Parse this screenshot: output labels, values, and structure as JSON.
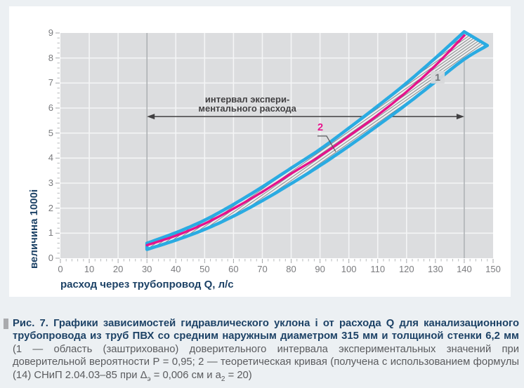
{
  "figure": {
    "caption": {
      "bold": "Рис. 7. Графики зависимостей гидравлического уклона i от расхода Q для канализационного трубопровода из труб ПВХ со средним наружным диаметром 315 мм и толщиной стенки 6,2 мм ",
      "normal_pre": "(1 — область (заштриховано) доверительного интервала экспериментальных значений при доверительной вероятности Р = 0,95; 2 — теоретическая кривая (получена с использованием формулы (14) СНиП 2.04.03–85 при ",
      "delta_base": "Δ",
      "delta_sub": "э",
      "mid": " = 0,006 см и ",
      "a_base": "а",
      "a_sub": "2",
      "tail": " = 20)"
    }
  },
  "chart_data": {
    "type": "area",
    "title": "",
    "xlabel": "расход через трубопровод Q, л/с",
    "ylabel": "величина 1000i",
    "xlim": [
      0,
      150
    ],
    "ylim": [
      0,
      9
    ],
    "xticks": [
      0,
      10,
      20,
      30,
      40,
      50,
      60,
      70,
      80,
      90,
      100,
      110,
      120,
      130,
      140,
      150
    ],
    "yticks": [
      0,
      1,
      2,
      3,
      4,
      5,
      6,
      7,
      8,
      9
    ],
    "x_minor_step": 2,
    "y_minor_step": 0.2,
    "grid": true,
    "reference_lines_x": [
      30,
      140
    ],
    "series": [
      {
        "name": "1 — доверительный интервал, верхняя граница",
        "points": [
          [
            30,
            0.6
          ],
          [
            40,
            1.02
          ],
          [
            50,
            1.52
          ],
          [
            60,
            2.15
          ],
          [
            70,
            2.85
          ],
          [
            80,
            3.6
          ],
          [
            90,
            4.35
          ],
          [
            100,
            5.2
          ],
          [
            110,
            6.08
          ],
          [
            120,
            7.0
          ],
          [
            130,
            8.0
          ],
          [
            140,
            9.05
          ]
        ]
      },
      {
        "name": "1 — доверительный интервал, нижняя граница",
        "points": [
          [
            30,
            0.35
          ],
          [
            40,
            0.72
          ],
          [
            50,
            1.15
          ],
          [
            60,
            1.68
          ],
          [
            70,
            2.3
          ],
          [
            80,
            2.98
          ],
          [
            90,
            3.7
          ],
          [
            100,
            4.48
          ],
          [
            110,
            5.3
          ],
          [
            120,
            6.15
          ],
          [
            130,
            7.05
          ],
          [
            140,
            7.95
          ],
          [
            148,
            8.5
          ]
        ]
      },
      {
        "name": "2 — теоретическая кривая",
        "points": [
          [
            30,
            0.52
          ],
          [
            40,
            0.9
          ],
          [
            50,
            1.38
          ],
          [
            60,
            1.98
          ],
          [
            70,
            2.65
          ],
          [
            80,
            3.38
          ],
          [
            90,
            4.08
          ],
          [
            100,
            4.88
          ],
          [
            110,
            5.72
          ],
          [
            120,
            6.65
          ],
          [
            130,
            7.7
          ],
          [
            140,
            8.9
          ]
        ]
      }
    ],
    "annotations": {
      "interval_label_line1": "интервал экспери-",
      "interval_label_line2": "ментального расхода",
      "interval_label_pos": [
        64.8,
        6.22
      ],
      "interval_arrow": {
        "x_from": 30,
        "x_to": 140,
        "y": 5.66
      },
      "band_label": "1",
      "band_label_pos": [
        130.8,
        7.23
      ],
      "curve_label": "2",
      "curve_label_pos": [
        90.1,
        5.1
      ],
      "curve_leader": [
        [
          89.1,
          4.88
        ],
        [
          92.3,
          4.88
        ],
        [
          95.4,
          4.26
        ]
      ]
    },
    "colors": {
      "plot_bg": "#dcdddf",
      "grid": "#f4f5f6",
      "ref_line": "#9ea2a5",
      "band_edge": "#2aabe2",
      "band_hatch_line": "#55585c",
      "band_hatch_bg": "#eceded",
      "curve": "#e6128c",
      "arrow": "#414042",
      "band_label_text": "#717477",
      "band_label_box": "#d7d8da",
      "tick_mark_minor": "#b7babc",
      "tick_mark_major": "#a4a7aa"
    },
    "legend_position": "none"
  }
}
